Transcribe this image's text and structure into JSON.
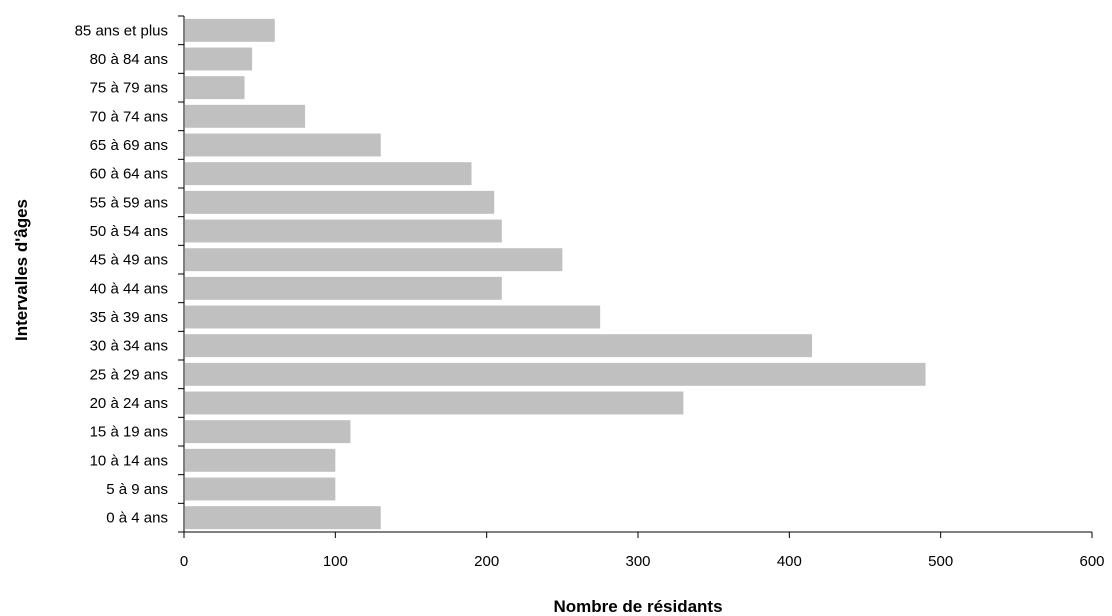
{
  "chart_data": {
    "type": "bar",
    "orientation": "horizontal",
    "categories": [
      "0 à 4 ans",
      "5 à 9 ans",
      "10 à 14 ans",
      "15 à 19 ans",
      "20 à 24 ans",
      "25 à 29 ans",
      "30 à 34 ans",
      "35 à 39 ans",
      "40 à 44 ans",
      "45 à 49 ans",
      "50 à 54 ans",
      "55 à 59 ans",
      "60 à 64 ans",
      "65 à 69 ans",
      "70 à 74 ans",
      "75 à 79 ans",
      "80 à 84 ans",
      "85 ans et plus"
    ],
    "values": [
      130,
      100,
      100,
      110,
      330,
      490,
      415,
      275,
      210,
      250,
      210,
      205,
      190,
      130,
      80,
      40,
      45,
      60
    ],
    "xlabel": "Nombre de résidants",
    "ylabel": "Intervalles d'âges",
    "xlim": [
      0,
      600
    ],
    "xticks": [
      0,
      100,
      200,
      300,
      400,
      500,
      600
    ],
    "grid": false,
    "legend": "none",
    "bar_color": "#c0c0c0",
    "axis_color": "#000000"
  }
}
